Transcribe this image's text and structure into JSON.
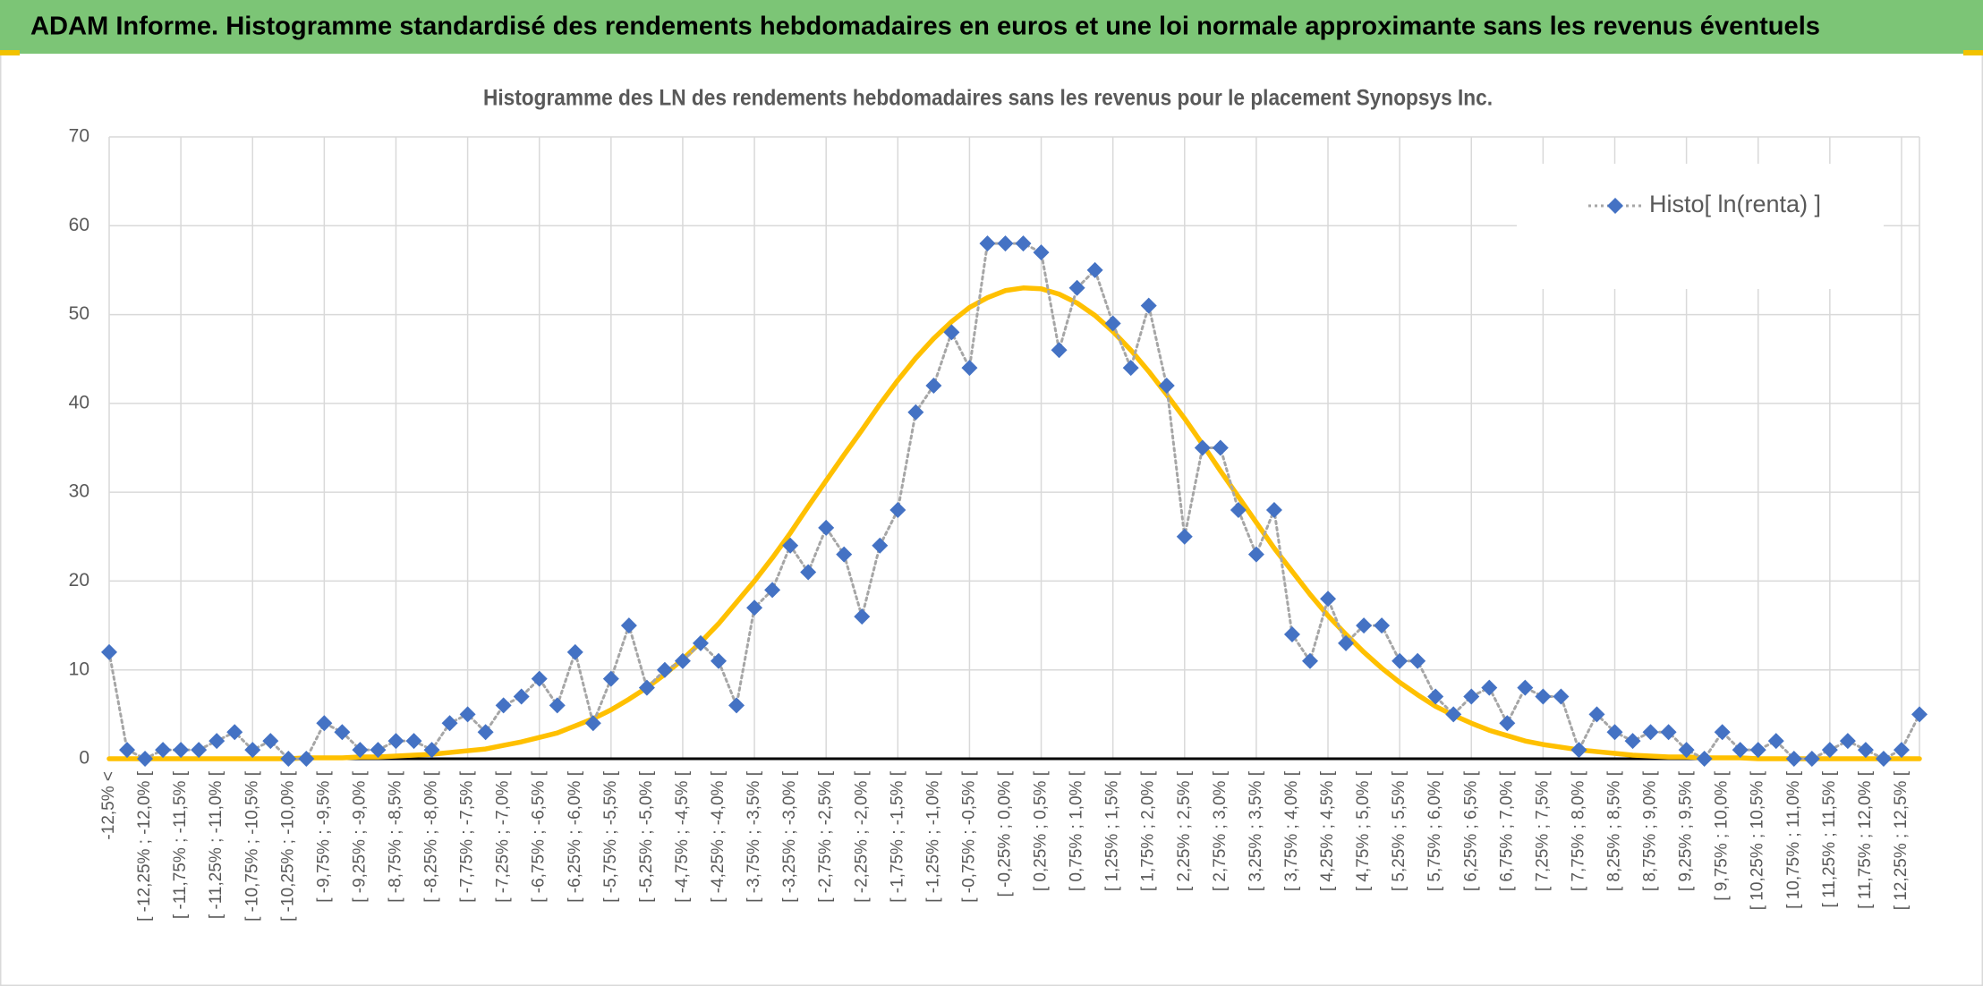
{
  "chart_data": {
    "type": "line",
    "title": "ADAM Informe. Histogramme standardisé des rendements hebdomadaires en euros et une loi normale approximante sans les revenus éventuels",
    "subtitle": "Histogramme des LN des rendements hebdomadaires sans les revenus pour le placement Synopsys Inc.",
    "categories": [
      "-12,5% <",
      null,
      "[ -12,25% ; -12,0% [",
      null,
      "[ -11,75% ; -11,5% [",
      null,
      "[ -11,25% ; -11,0% [",
      null,
      "[ -10,75% ; -10,5% [",
      null,
      "[ -10,25% ; -10,0% [",
      null,
      "[ -9,75% ; -9,5% [",
      null,
      "[ -9,25% ; -9,0% [",
      null,
      "[ -8,75% ; -8,5% [",
      null,
      "[ -8,25% ; -8,0% [",
      null,
      "[ -7,75% ; -7,5% [",
      null,
      "[ -7,25% ; -7,0% [",
      null,
      "[ -6,75% ; -6,5% [",
      null,
      "[ -6,25% ; -6,0% [",
      null,
      "[ -5,75% ; -5,5% [",
      null,
      "[ -5,25% ; -5,0% [",
      null,
      "[ -4,75% ; -4,5% [",
      null,
      "[ -4,25% ; -4,0% [",
      null,
      "[ -3,75% ; -3,5% [",
      null,
      "[ -3,25% ; -3,0% [",
      null,
      "[ -2,75% ; -2,5% [",
      null,
      "[ -2,25% ; -2,0% [",
      null,
      "[ -1,75% ; -1,5% [",
      null,
      "[ -1,25% ; -1,0% [",
      null,
      "[ -0,75% ; -0,5% [",
      null,
      "[ -0,25% ; 0,0% [",
      null,
      "[ 0,25% ; 0,5% [",
      null,
      "[ 0,75% ; 1,0% [",
      null,
      "[ 1,25% ; 1,5% [",
      null,
      "[ 1,75% ; 2,0% [",
      null,
      "[ 2,25% ; 2,5% [",
      null,
      "[ 2,75% ; 3,0% [",
      null,
      "[ 3,25% ; 3,5% [",
      null,
      "[ 3,75% ; 4,0% [",
      null,
      "[ 4,25% ; 4,5% [",
      null,
      "[ 4,75% ; 5,0% [",
      null,
      "[ 5,25% ; 5,5% [",
      null,
      "[ 5,75% ; 6,0% [",
      null,
      "[ 6,25% ; 6,5% [",
      null,
      "[ 6,75% ; 7,0% [",
      null,
      "[ 7,25% ; 7,5% [",
      null,
      "[ 7,75% ; 8,0% [",
      null,
      "[ 8,25% ; 8,5% [",
      null,
      "[ 8,75% ; 9,0% [",
      null,
      "[ 9,25% ; 9,5% [",
      null,
      "[ 9,75% ; 10,0% [",
      null,
      "[ 10,25% ; 10,5% [",
      null,
      "[ 10,75% ; 11,0% [",
      null,
      "[ 11,25% ; 11,5% [",
      null,
      "[ 11,75% ; 12,0% [",
      null,
      "[ 12,25% ; 12,5% [",
      null
    ],
    "series": [
      {
        "name": "Histo[ ln(renta) ]",
        "color": "#4472c4",
        "line_color": "#a6a6a6",
        "line_style": "dotted",
        "marker": "diamond",
        "values": [
          12,
          1,
          0,
          1,
          1,
          1,
          2,
          3,
          1,
          2,
          0,
          0,
          4,
          3,
          1,
          1,
          2,
          2,
          1,
          4,
          5,
          3,
          6,
          7,
          9,
          6,
          12,
          4,
          9,
          15,
          8,
          10,
          11,
          13,
          11,
          6,
          17,
          19,
          24,
          21,
          26,
          23,
          16,
          24,
          28,
          39,
          42,
          48,
          44,
          58,
          58,
          58,
          57,
          46,
          53,
          55,
          49,
          44,
          51,
          42,
          25,
          35,
          35,
          28,
          23,
          28,
          14,
          11,
          18,
          13,
          15,
          15,
          11,
          11,
          7,
          5,
          7,
          8,
          4,
          8,
          7,
          7,
          1,
          5,
          3,
          2,
          3,
          3,
          1,
          0,
          3,
          1,
          1,
          2,
          0,
          0,
          1,
          2,
          1,
          0,
          1,
          5
        ]
      },
      {
        "color": "#ffc000",
        "line_style": "solid",
        "marker": "none",
        "values": [
          0,
          0,
          0,
          0,
          0,
          0,
          0,
          0,
          0,
          0,
          0,
          0.1,
          0.1,
          0.1,
          0.2,
          0.2,
          0.3,
          0.4,
          0.5,
          0.7,
          0.9,
          1.1,
          1.5,
          1.9,
          2.4,
          2.9,
          3.7,
          4.5,
          5.5,
          6.7,
          8.0,
          9.5,
          11.2,
          13.1,
          15.2,
          17.6,
          20.0,
          22.6,
          25.4,
          28.4,
          31.3,
          34.2,
          37.0,
          39.9,
          42.6,
          45.1,
          47.3,
          49.2,
          50.8,
          51.9,
          52.7,
          53.0,
          52.9,
          52.3,
          51.3,
          49.9,
          48.1,
          46.0,
          43.6,
          41.0,
          38.3,
          35.4,
          32.4,
          29.5,
          26.6,
          23.7,
          21.1,
          18.5,
          16.1,
          14.0,
          12.0,
          10.2,
          8.6,
          7.2,
          5.9,
          4.9,
          4.0,
          3.2,
          2.6,
          2.0,
          1.6,
          1.3,
          1.0,
          0.8,
          0.6,
          0.4,
          0.3,
          0.2,
          0.2,
          0.1,
          0.1,
          0.1,
          0,
          0,
          0,
          0,
          0,
          0,
          0,
          0,
          0,
          0
        ]
      }
    ],
    "ylim": [
      0,
      70
    ],
    "yticks": [
      0,
      10,
      20,
      30,
      40,
      50,
      60,
      70
    ],
    "grid": true,
    "legend": "upper right"
  }
}
